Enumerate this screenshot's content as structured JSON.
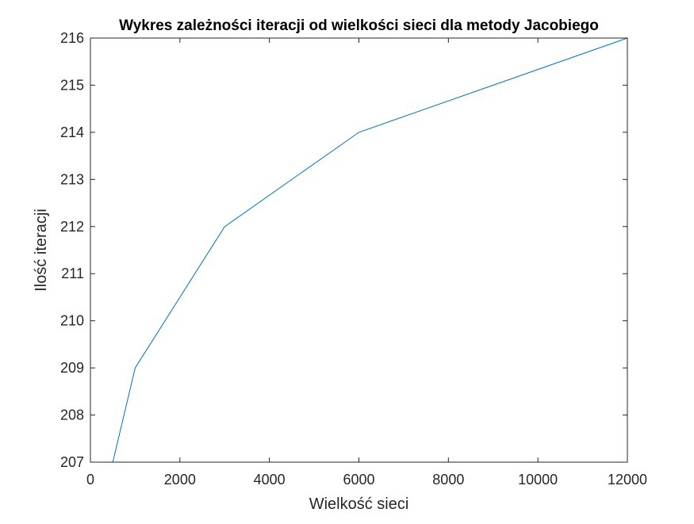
{
  "chart_data": {
    "type": "line",
    "title": "Wykres zależności iteracji od wielkości sieci dla metody Jacobiego",
    "xlabel": "Wielkość sieci",
    "ylabel": "Ilość iteracji",
    "xlim": [
      0,
      12000
    ],
    "ylim": [
      207,
      216
    ],
    "xticks": [
      0,
      2000,
      4000,
      6000,
      8000,
      10000,
      12000
    ],
    "xtick_labels": [
      "0",
      "2000",
      "4000",
      "6000",
      "8000",
      "10000",
      "12000"
    ],
    "yticks": [
      207,
      208,
      209,
      210,
      211,
      212,
      213,
      214,
      215,
      216
    ],
    "ytick_labels": [
      "207",
      "208",
      "209",
      "210",
      "211",
      "212",
      "213",
      "214",
      "215",
      "216"
    ],
    "grid": false,
    "series": [
      {
        "color": "#0072BD",
        "x": [
          500,
          1000,
          3000,
          6000,
          12000
        ],
        "y": [
          207,
          209,
          212,
          214,
          216
        ]
      }
    ]
  }
}
